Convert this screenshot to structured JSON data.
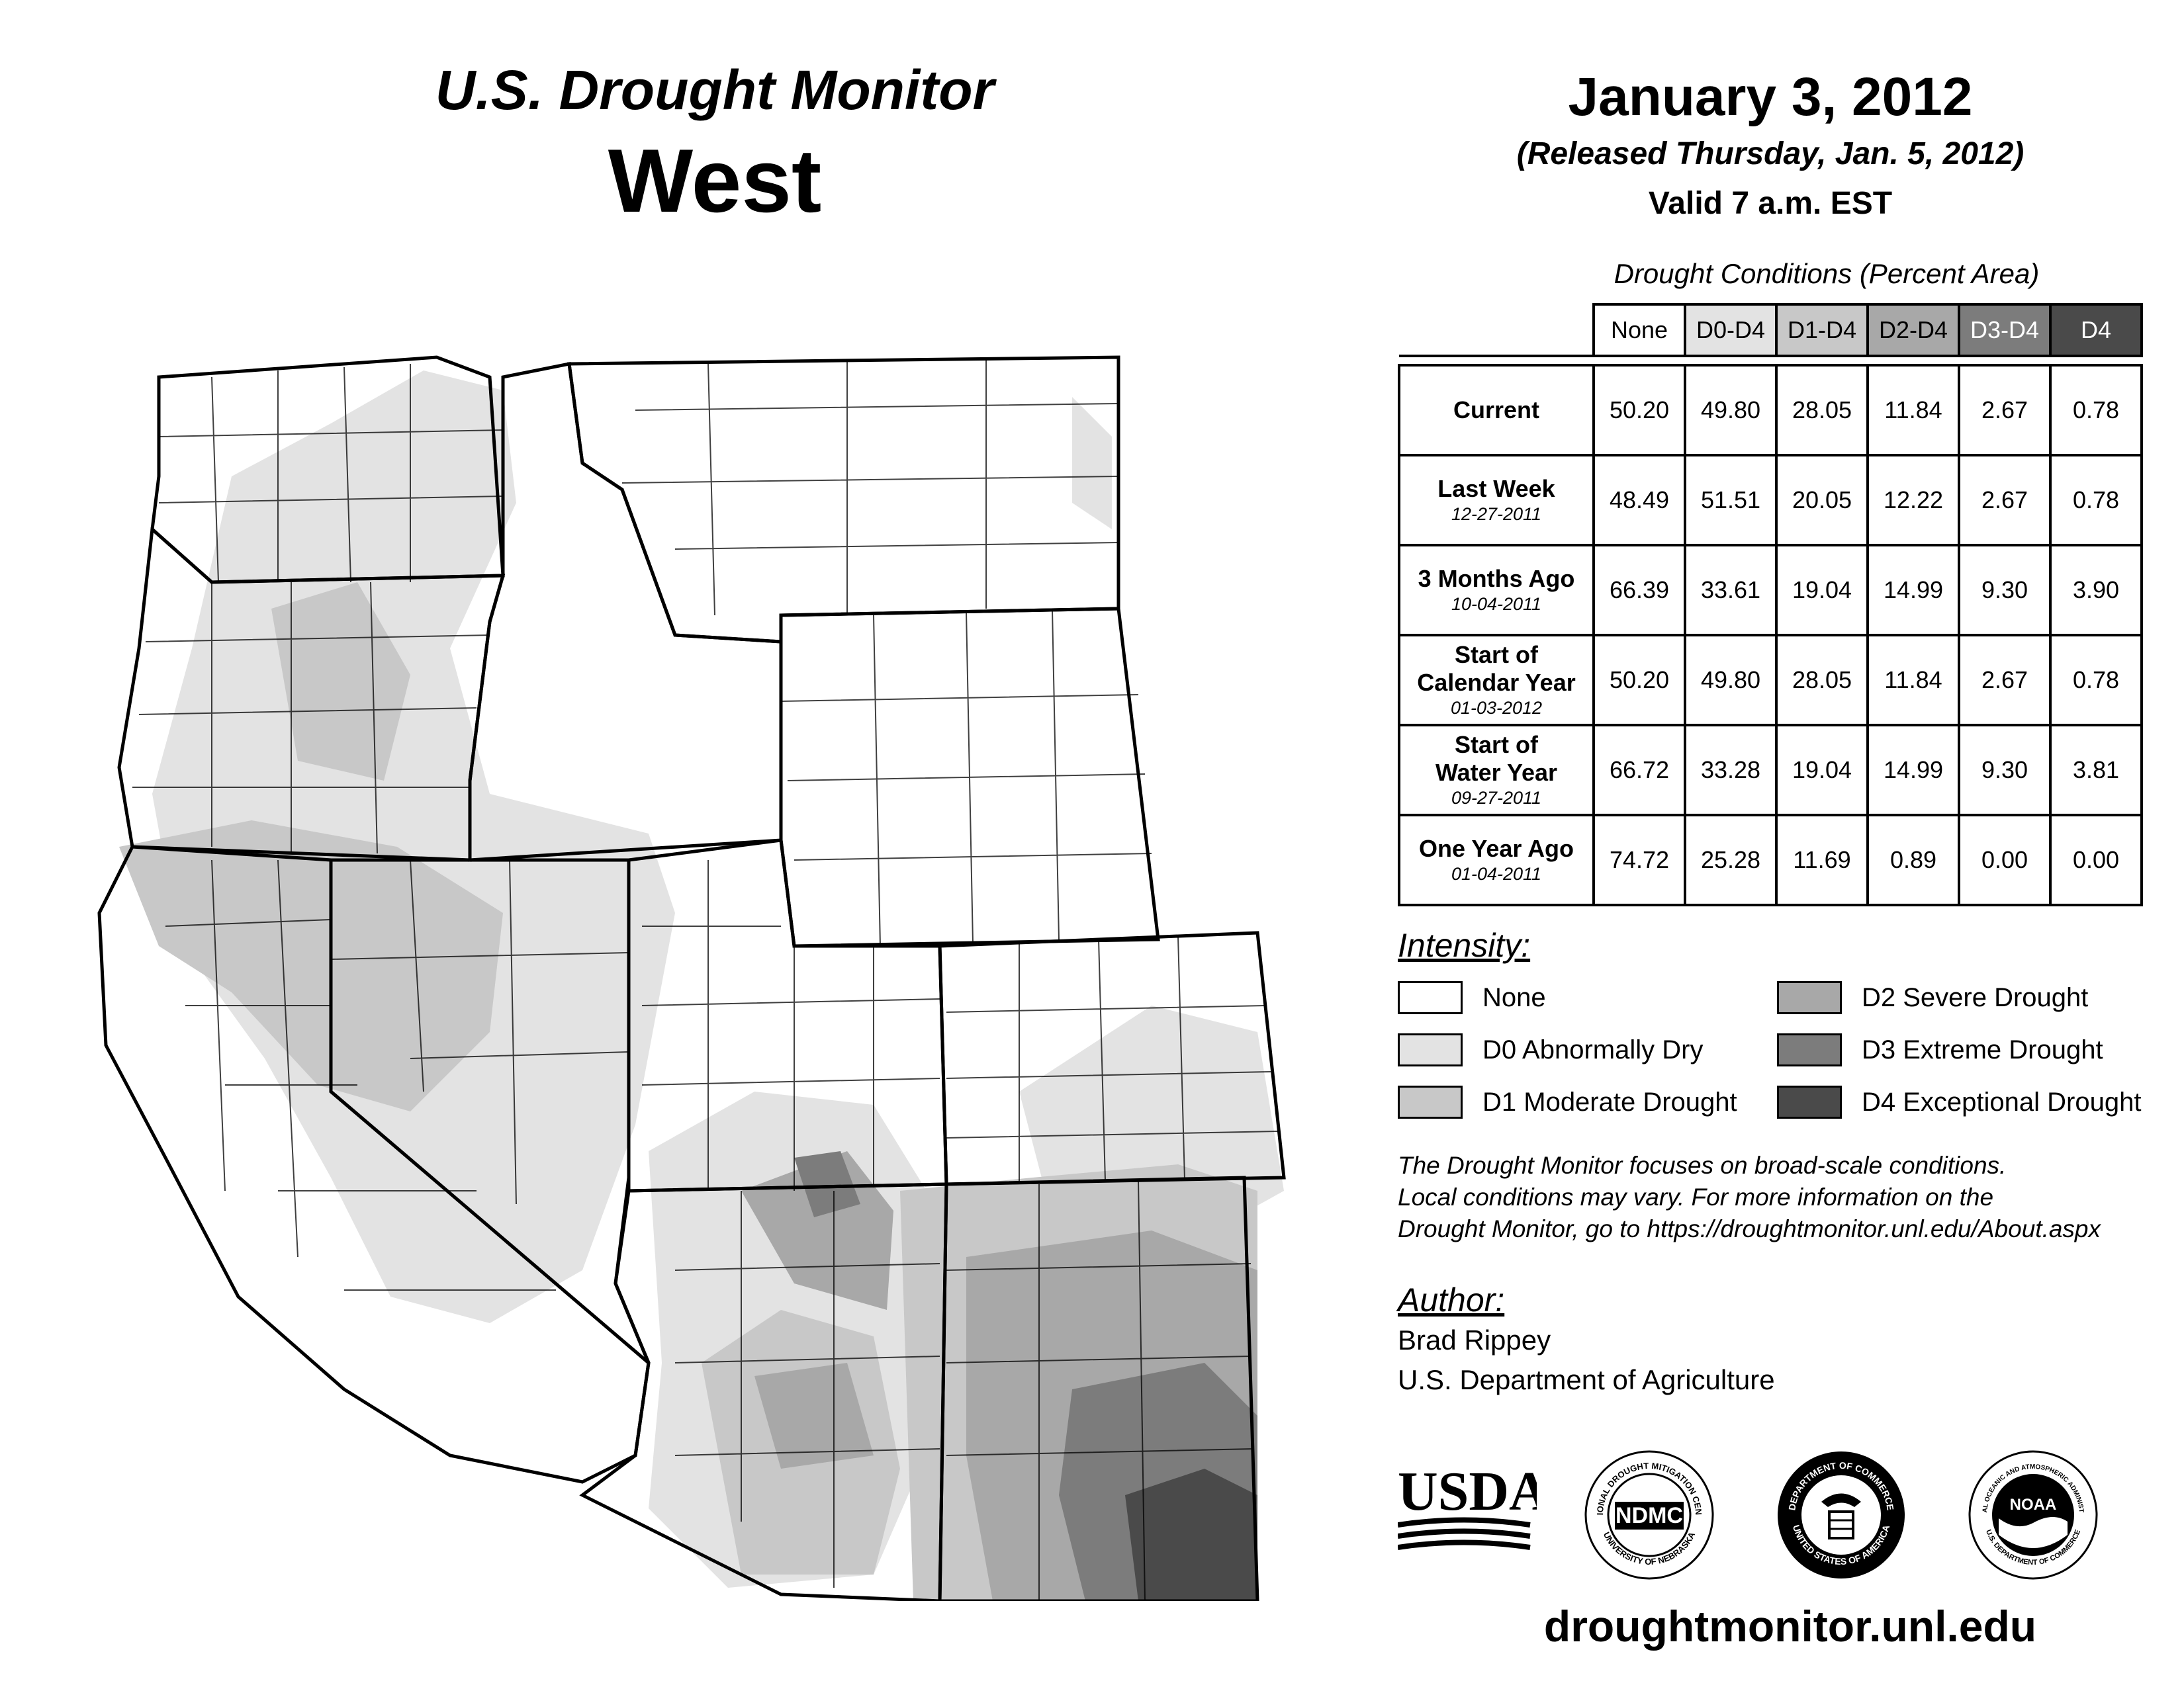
{
  "header": {
    "title": "U.S. Drought Monitor",
    "region": "West",
    "date": "January 3, 2012",
    "released": "(Released Thursday, Jan. 5, 2012)",
    "valid": "Valid 7 a.m. EST"
  },
  "table": {
    "caption": "Drought Conditions (Percent Area)",
    "columns": [
      "None",
      "D0-D4",
      "D1-D4",
      "D2-D4",
      "D3-D4",
      "D4"
    ],
    "rows": [
      {
        "label": "Current",
        "label2": "",
        "date": "",
        "values": [
          "50.20",
          "49.80",
          "28.05",
          "11.84",
          "2.67",
          "0.78"
        ]
      },
      {
        "label": "Last Week",
        "label2": "",
        "date": "12-27-2011",
        "values": [
          "48.49",
          "51.51",
          "20.05",
          "12.22",
          "2.67",
          "0.78"
        ]
      },
      {
        "label": "3 Months Ago",
        "label2": "",
        "date": "10-04-2011",
        "values": [
          "66.39",
          "33.61",
          "19.04",
          "14.99",
          "9.30",
          "3.90"
        ]
      },
      {
        "label": "Start of",
        "label2": "Calendar Year",
        "date": "01-03-2012",
        "values": [
          "50.20",
          "49.80",
          "28.05",
          "11.84",
          "2.67",
          "0.78"
        ]
      },
      {
        "label": "Start of",
        "label2": "Water Year",
        "date": "09-27-2011",
        "values": [
          "66.72",
          "33.28",
          "19.04",
          "14.99",
          "9.30",
          "3.81"
        ]
      },
      {
        "label": "One Year Ago",
        "label2": "",
        "date": "01-04-2011",
        "values": [
          "74.72",
          "25.28",
          "11.69",
          "0.89",
          "0.00",
          "0.00"
        ]
      }
    ]
  },
  "legend": {
    "title": "Intensity:",
    "items": [
      {
        "label": "None",
        "color": "#ffffff"
      },
      {
        "label": "D0 Abnormally Dry",
        "color": "#e3e3e3"
      },
      {
        "label": "D1 Moderate Drought",
        "color": "#c8c8c8"
      },
      {
        "label": "D2 Severe Drought",
        "color": "#a8a8a8"
      },
      {
        "label": "D3 Extreme Drought",
        "color": "#7c7c7c"
      },
      {
        "label": "D4 Exceptional Drought",
        "color": "#4a4a4a"
      }
    ]
  },
  "note": {
    "line1": "The Drought Monitor focuses on broad-scale conditions.",
    "line2": "Local conditions may vary. For more information on the",
    "line3": "Drought Monitor, go to https://droughtmonitor.unl.edu/About.aspx"
  },
  "author": {
    "title": "Author:",
    "name": "Brad Rippey",
    "org": "U.S. Department of Agriculture"
  },
  "logos": {
    "usda": "USDA",
    "ndmc": "NDMC",
    "ndmc_ring_top": "NATIONAL DROUGHT MITIGATION CENTER",
    "ndmc_ring_bottom": "UNIVERSITY OF NEBRASKA",
    "commerce_ring_top": "DEPARTMENT OF COMMERCE",
    "commerce_ring_bottom": "UNITED STATES OF AMERICA",
    "noaa": "NOAA",
    "noaa_ring_top": "NATIONAL OCEANIC AND ATMOSPHERIC ADMINISTRATION",
    "noaa_ring_bottom": "U.S. DEPARTMENT OF COMMERCE"
  },
  "website": "droughtmonitor.unl.edu"
}
